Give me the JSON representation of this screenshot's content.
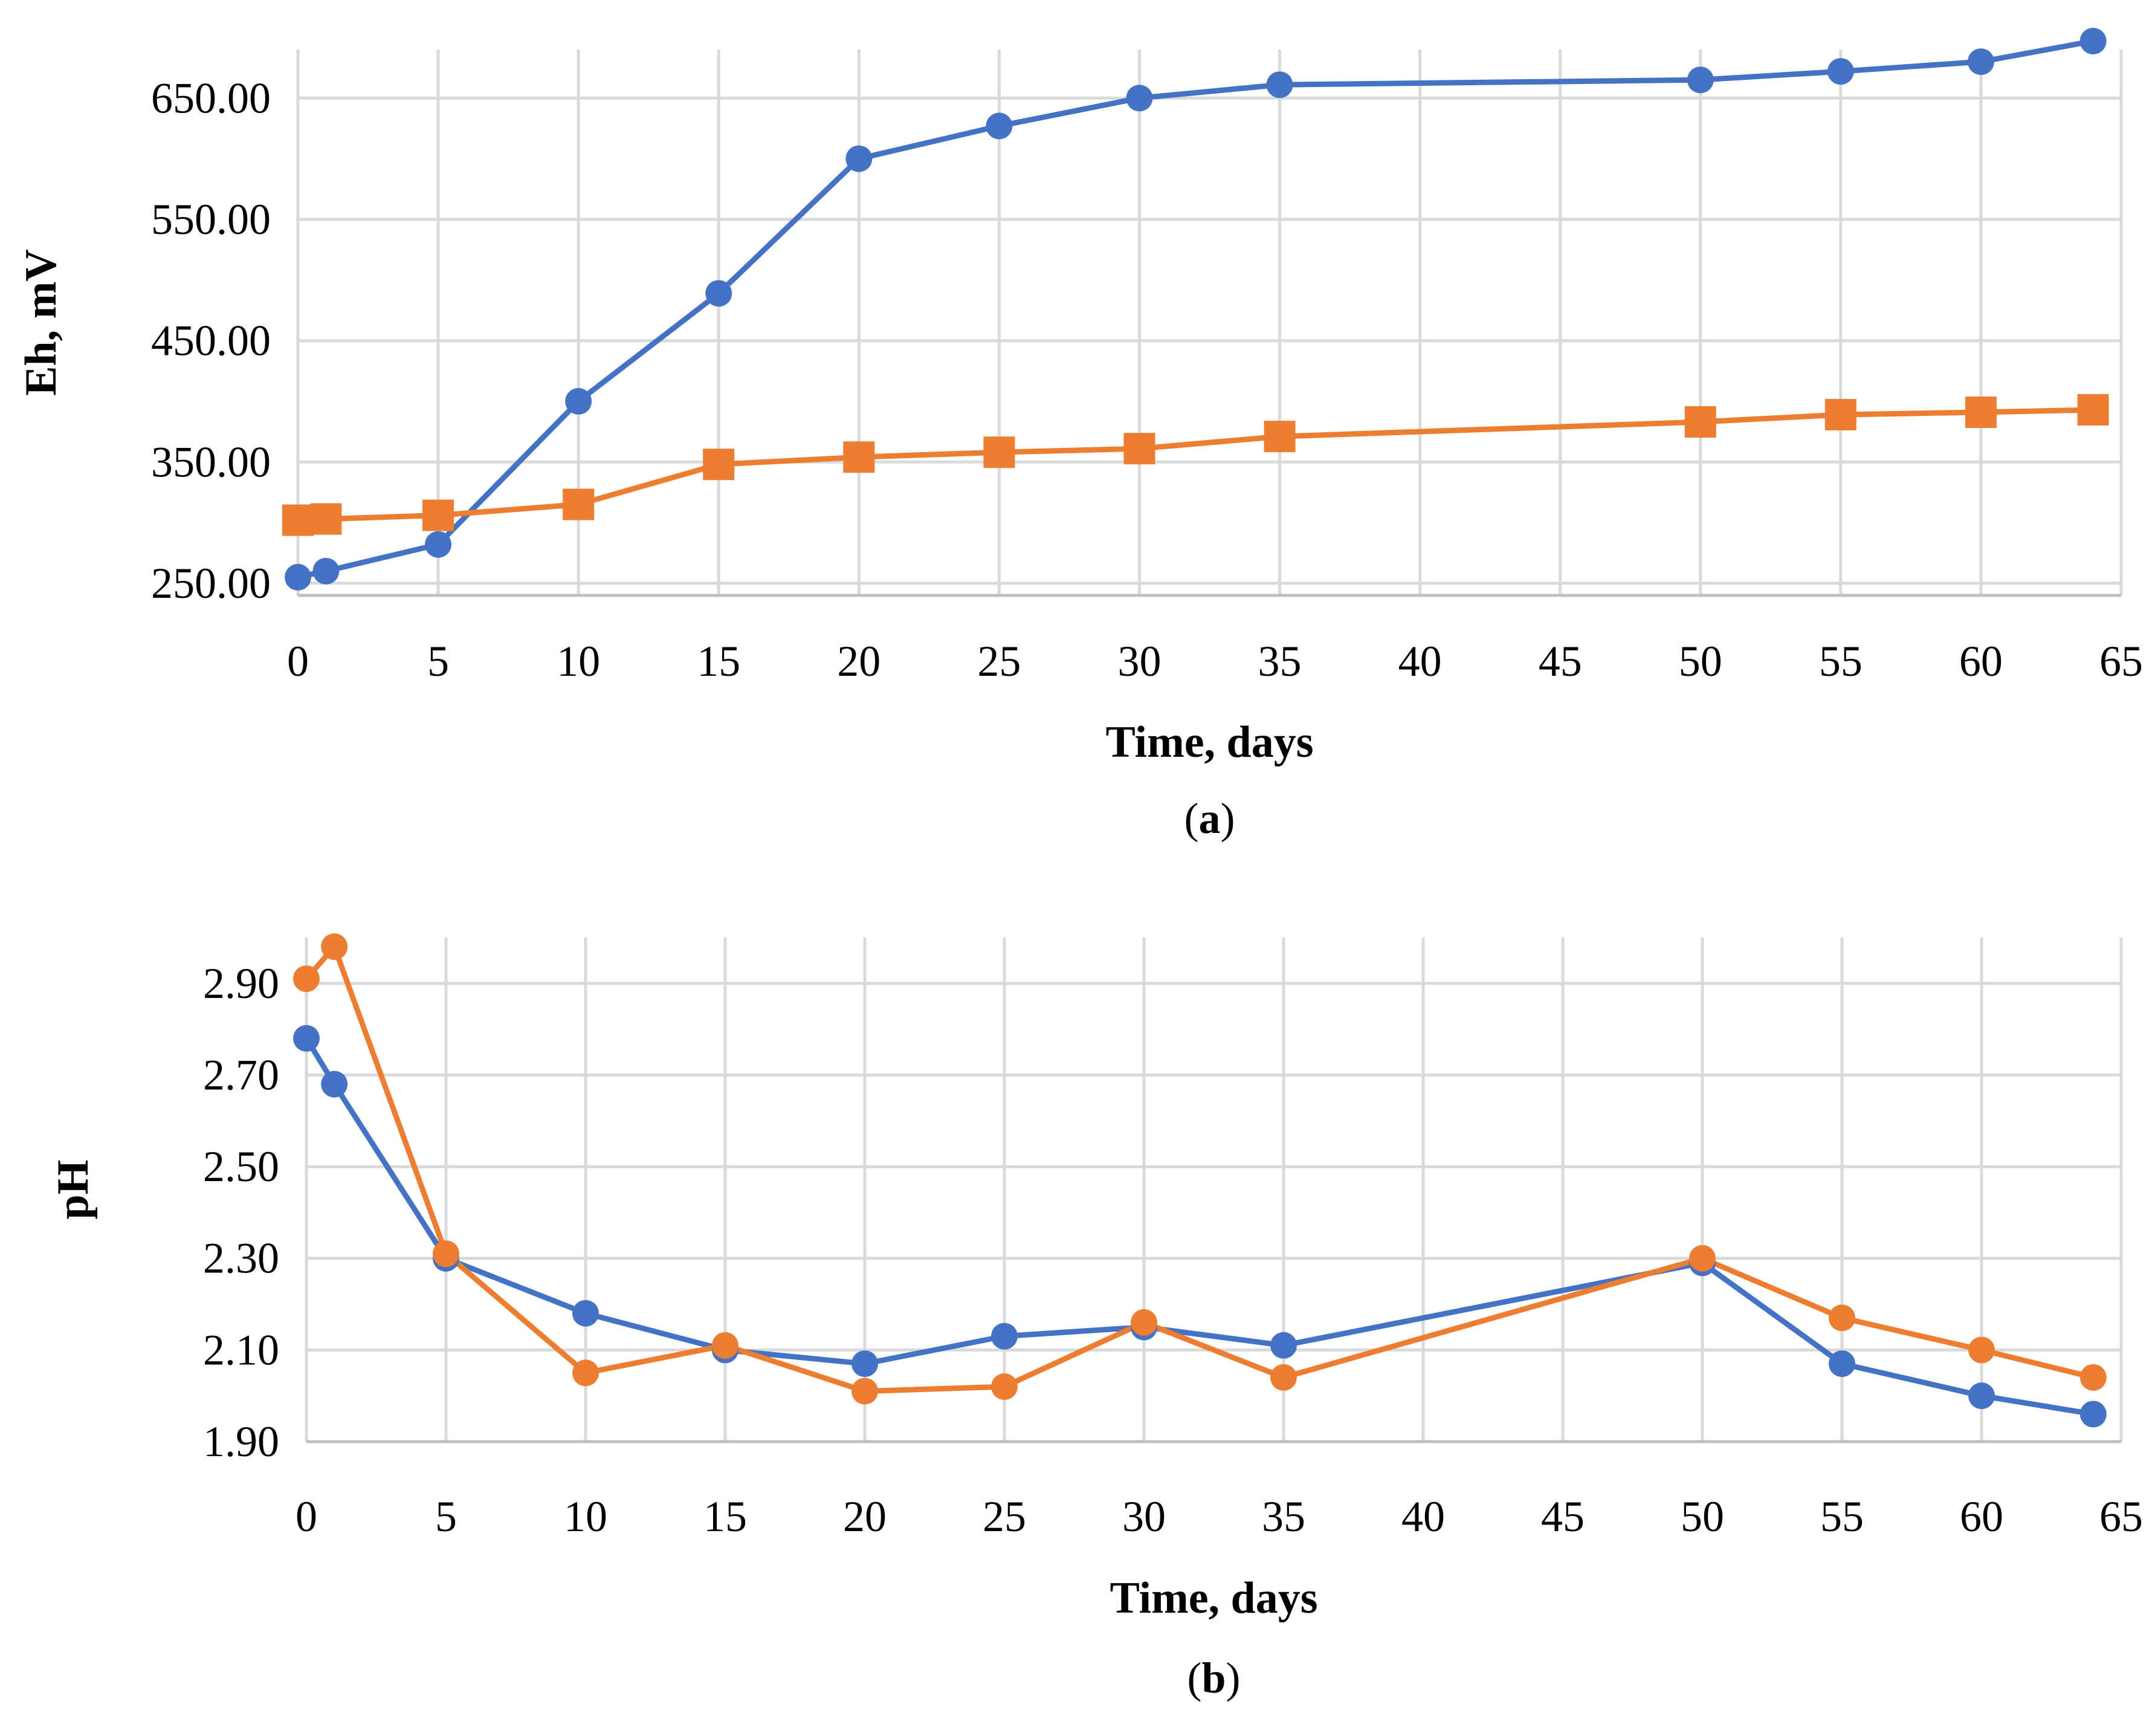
{
  "chart_data": [
    {
      "type": "line",
      "panel": "a",
      "caption_open": "(",
      "caption_letter": "a",
      "caption_close": ")",
      "xlabel": "Time, days",
      "ylabel": "Eh, mV",
      "xlim": [
        0,
        65
      ],
      "ylim": [
        240,
        690
      ],
      "x_ticks": [
        0,
        5,
        10,
        15,
        20,
        25,
        30,
        35,
        40,
        45,
        50,
        55,
        60,
        65
      ],
      "x_tick_labels": [
        "0",
        "5",
        "10",
        "15",
        "20",
        "25",
        "30",
        "35",
        "40",
        "45",
        "50",
        "55",
        "60",
        "65"
      ],
      "y_ticks": [
        250,
        350,
        450,
        550,
        650
      ],
      "y_tick_labels": [
        "250.00",
        "350.00",
        "450.00",
        "550.00",
        "650.00"
      ],
      "grid": true,
      "series": [
        {
          "name": "series-1",
          "color": "#4472C4",
          "marker": "circle",
          "x": [
            0,
            1,
            5,
            10,
            15,
            20,
            25,
            30,
            35,
            50,
            55,
            60,
            64
          ],
          "values": [
            255,
            260,
            282,
            400,
            489,
            600,
            627,
            650,
            661,
            665,
            672,
            680,
            697
          ]
        },
        {
          "name": "series-2",
          "color": "#ED7D31",
          "marker": "square",
          "x": [
            0,
            1,
            5,
            10,
            15,
            20,
            25,
            30,
            35,
            50,
            55,
            60,
            64
          ],
          "values": [
            302,
            303,
            306,
            315,
            348,
            354,
            358,
            361,
            371,
            383,
            389,
            391,
            393
          ]
        }
      ]
    },
    {
      "type": "line",
      "panel": "b",
      "caption_open": "(",
      "caption_letter": "b",
      "caption_close": ")",
      "xlabel": "Time, days",
      "ylabel": "pH",
      "xlim": [
        0,
        65
      ],
      "ylim": [
        1.9,
        3.0
      ],
      "x_ticks": [
        0,
        5,
        10,
        15,
        20,
        25,
        30,
        35,
        40,
        45,
        50,
        55,
        60,
        65
      ],
      "x_tick_labels": [
        "0",
        "5",
        "10",
        "15",
        "20",
        "25",
        "30",
        "35",
        "40",
        "45",
        "50",
        "55",
        "60",
        "65"
      ],
      "y_ticks": [
        1.9,
        2.1,
        2.3,
        2.5,
        2.7,
        2.9
      ],
      "y_tick_labels": [
        "1.90",
        "2.10",
        "2.30",
        "2.50",
        "2.70",
        "2.90"
      ],
      "grid": true,
      "series": [
        {
          "name": "series-1",
          "color": "#4472C4",
          "marker": "circle",
          "x": [
            0,
            1,
            5,
            10,
            15,
            20,
            25,
            30,
            35,
            50,
            55,
            60,
            64
          ],
          "values": [
            2.78,
            2.68,
            2.3,
            2.18,
            2.1,
            2.07,
            2.13,
            2.15,
            2.11,
            2.29,
            2.07,
            2.0,
            1.96
          ]
        },
        {
          "name": "series-2",
          "color": "#ED7D31",
          "marker": "circle",
          "x": [
            0,
            1,
            5,
            10,
            15,
            20,
            25,
            30,
            35,
            50,
            55,
            60,
            64
          ],
          "values": [
            2.91,
            2.98,
            2.31,
            2.05,
            2.11,
            2.01,
            2.02,
            2.16,
            2.04,
            2.3,
            2.17,
            2.1,
            2.04
          ]
        }
      ]
    }
  ]
}
